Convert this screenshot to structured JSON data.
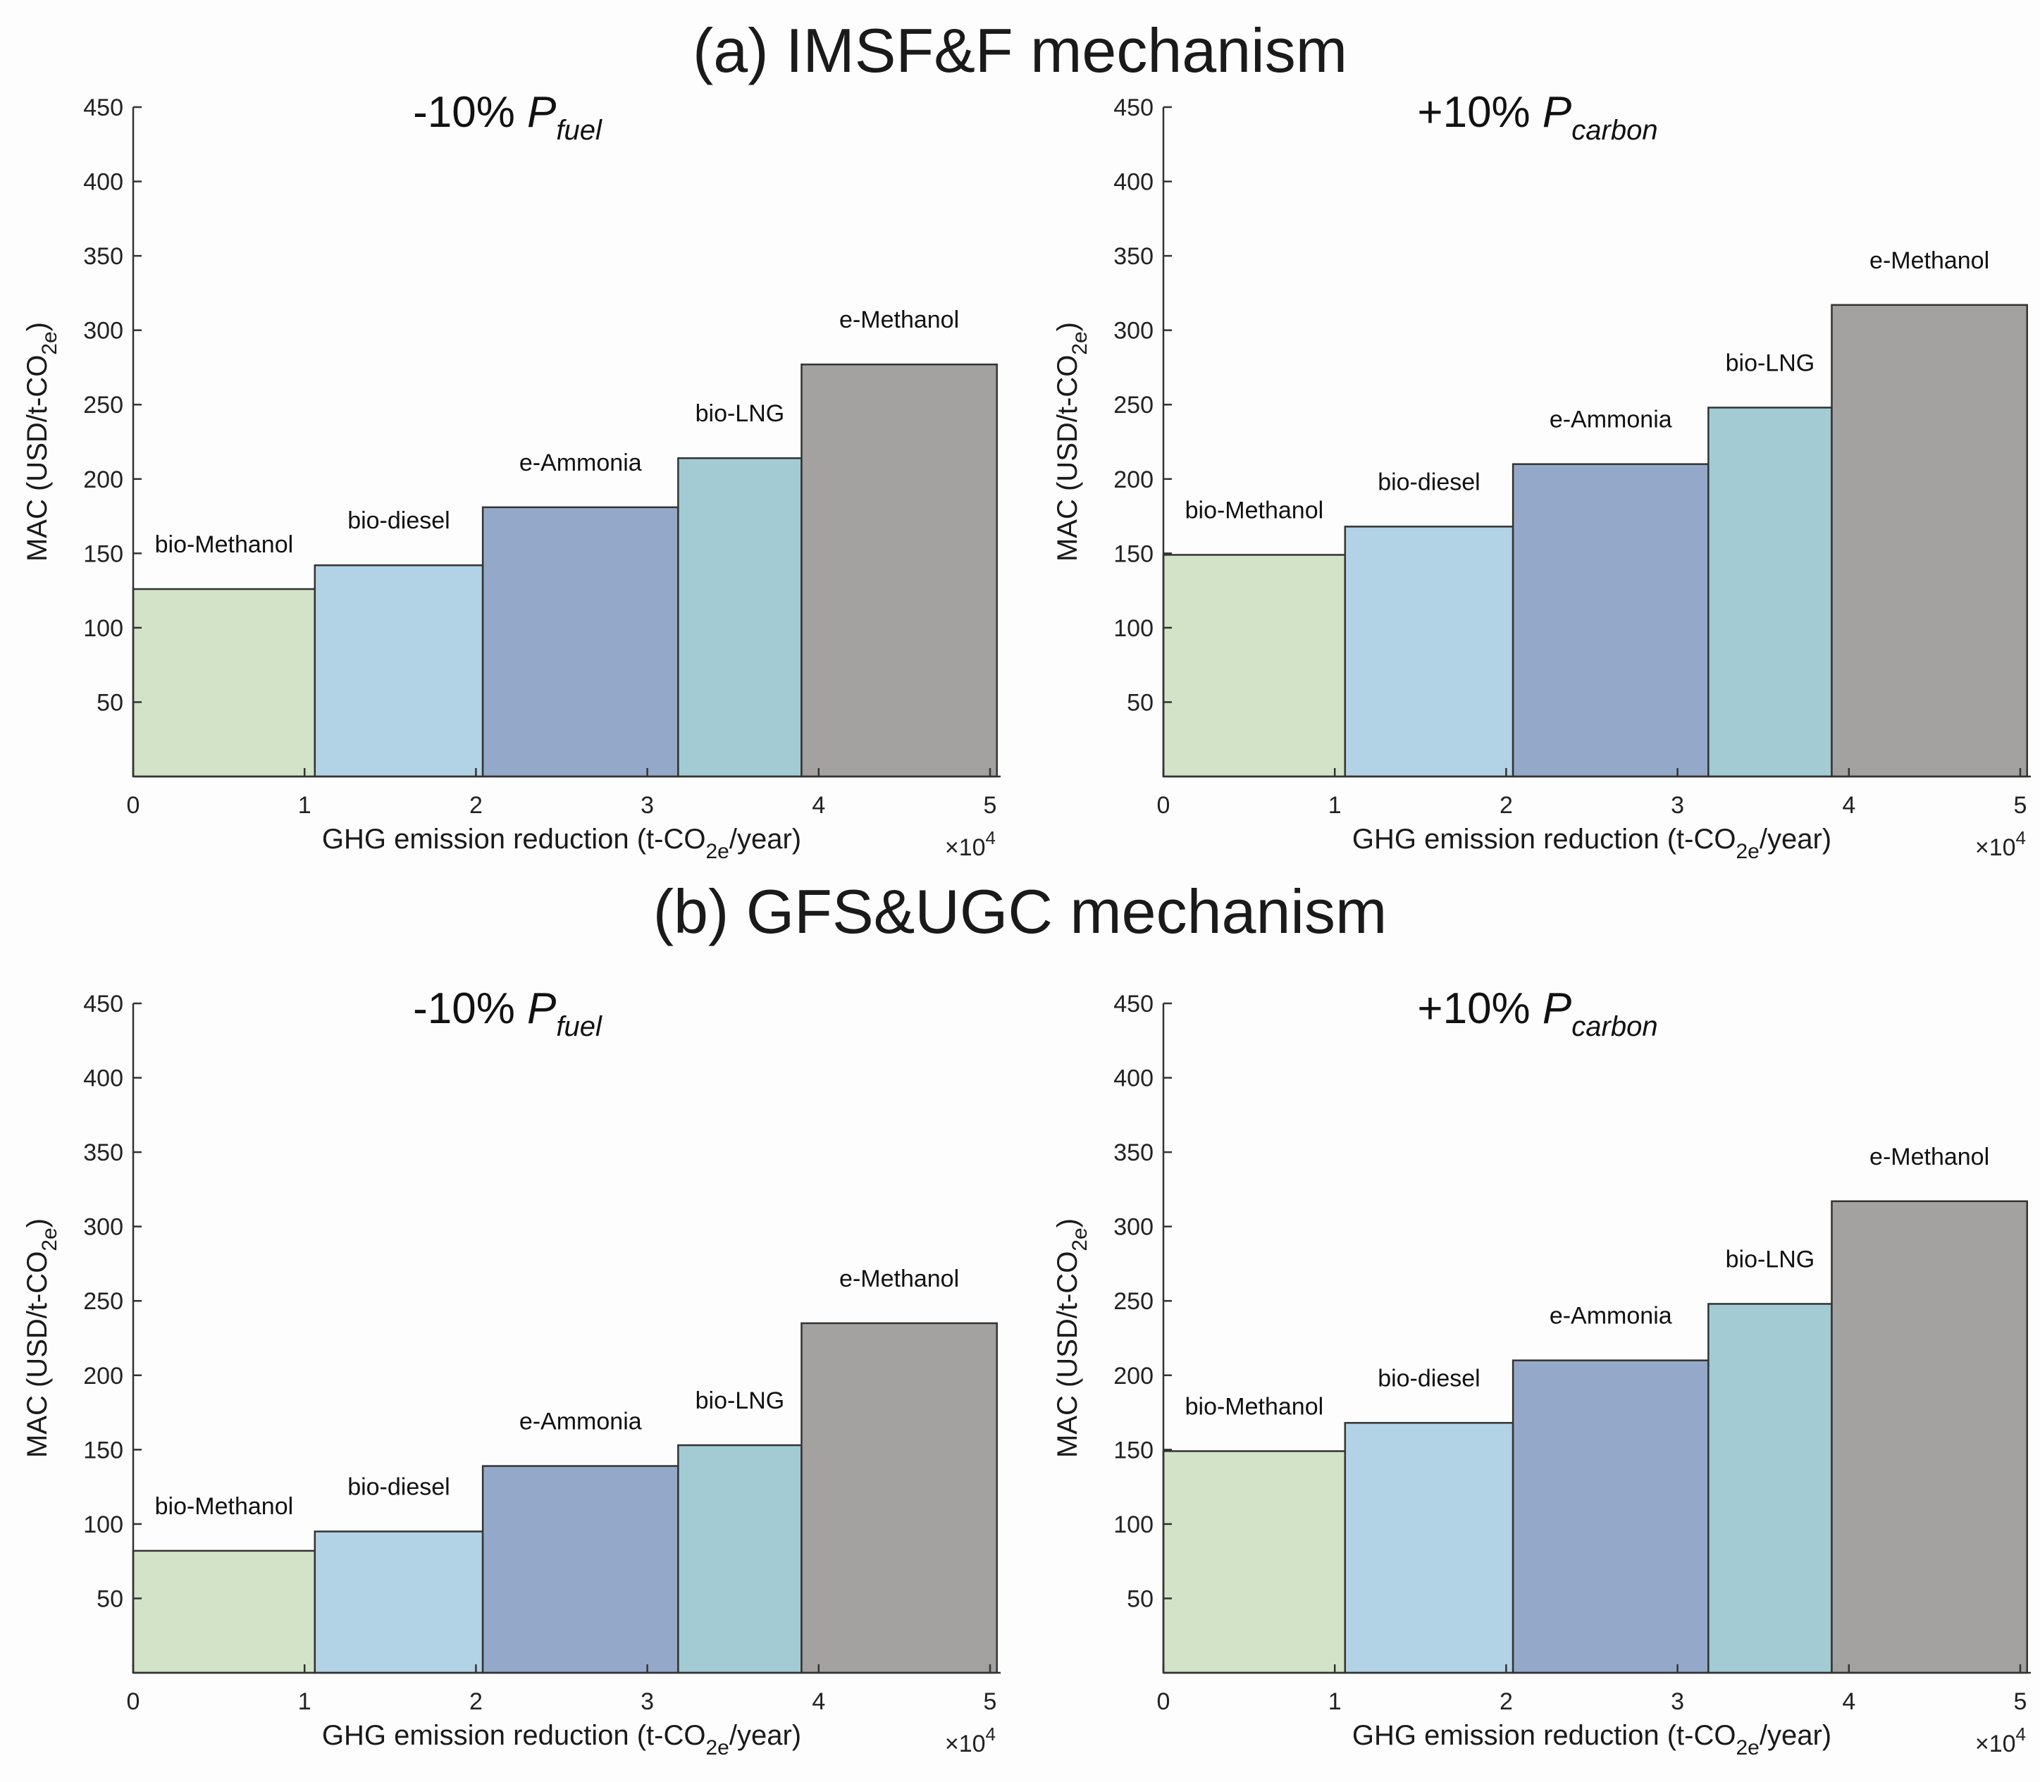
{
  "sections": {
    "a": {
      "title": "(a) IMSF&F mechanism"
    },
    "b": {
      "title": "(b) GFS&UGC mechanism"
    }
  },
  "panel_titles": {
    "fuel": {
      "main": "-10% ",
      "var": "P",
      "sub": "fuel"
    },
    "carbon": {
      "main": "+10% ",
      "var": "P",
      "sub": "carbon"
    }
  },
  "axis_labels": {
    "ylabel": {
      "main": "MAC (USD/t-CO",
      "sub": "2e",
      "end": ")"
    },
    "xlabel": {
      "main": "GHG emission reduction (t-CO",
      "sub": "2e",
      "end": "/year)"
    },
    "x_exponent": {
      "base": "×10",
      "power": "4"
    }
  },
  "colors": {
    "bio-Methanol": "#d2e3c7",
    "bio-diesel": "#b2d2e5",
    "e-Ammonia": "#94a9c9",
    "bio-LNG": "#a3cbd3",
    "e-Methanol": "#a4a2a0"
  },
  "chart_data": [
    {
      "id": "a-fuel",
      "section": "a",
      "type": "bar",
      "title": "-10% P_fuel",
      "xlabel": "GHG emission reduction (t-CO2e/year)",
      "ylabel": "MAC (USD/t-CO2e)",
      "xlim": [
        0,
        50000
      ],
      "ylim": [
        0,
        450
      ],
      "xticks": [
        "0",
        "1",
        "2",
        "3",
        "4",
        "5"
      ],
      "x_multiplier": "×10^4",
      "yticks": [
        "50",
        "100",
        "150",
        "200",
        "250",
        "300",
        "350",
        "400",
        "450"
      ],
      "bars": [
        {
          "label": "bio-Methanol",
          "x_start": 0,
          "x_end": 10600,
          "value": 126
        },
        {
          "label": "bio-diesel",
          "x_start": 10600,
          "x_end": 20400,
          "value": 142
        },
        {
          "label": "e-Ammonia",
          "x_start": 20400,
          "x_end": 31800,
          "value": 181
        },
        {
          "label": "bio-LNG",
          "x_start": 31800,
          "x_end": 39000,
          "value": 214
        },
        {
          "label": "e-Methanol",
          "x_start": 39000,
          "x_end": 50400,
          "value": 277
        }
      ]
    },
    {
      "id": "a-carbon",
      "section": "a",
      "type": "bar",
      "title": "+10% P_carbon",
      "xlabel": "GHG emission reduction (t-CO2e/year)",
      "ylabel": "MAC (USD/t-CO2e)",
      "xlim": [
        0,
        50000
      ],
      "ylim": [
        0,
        450
      ],
      "xticks": [
        "0",
        "1",
        "2",
        "3",
        "4",
        "5"
      ],
      "x_multiplier": "×10^4",
      "yticks": [
        "50",
        "100",
        "150",
        "200",
        "250",
        "300",
        "350",
        "400",
        "450"
      ],
      "bars": [
        {
          "label": "bio-Methanol",
          "x_start": 0,
          "x_end": 10600,
          "value": 149
        },
        {
          "label": "bio-diesel",
          "x_start": 10600,
          "x_end": 20400,
          "value": 168
        },
        {
          "label": "e-Ammonia",
          "x_start": 20400,
          "x_end": 31800,
          "value": 210
        },
        {
          "label": "bio-LNG",
          "x_start": 31800,
          "x_end": 39000,
          "value": 248
        },
        {
          "label": "e-Methanol",
          "x_start": 39000,
          "x_end": 50400,
          "value": 317
        }
      ]
    },
    {
      "id": "b-fuel",
      "section": "b",
      "type": "bar",
      "title": "-10% P_fuel",
      "xlabel": "GHG emission reduction (t-CO2e/year)",
      "ylabel": "MAC (USD/t-CO2e)",
      "xlim": [
        0,
        50000
      ],
      "ylim": [
        0,
        450
      ],
      "xticks": [
        "0",
        "1",
        "2",
        "3",
        "4",
        "5"
      ],
      "x_multiplier": "×10^4",
      "yticks": [
        "50",
        "100",
        "150",
        "200",
        "250",
        "300",
        "350",
        "400",
        "450"
      ],
      "bars": [
        {
          "label": "bio-Methanol",
          "x_start": 0,
          "x_end": 10600,
          "value": 82
        },
        {
          "label": "bio-diesel",
          "x_start": 10600,
          "x_end": 20400,
          "value": 95
        },
        {
          "label": "e-Ammonia",
          "x_start": 20400,
          "x_end": 31800,
          "value": 139
        },
        {
          "label": "bio-LNG",
          "x_start": 31800,
          "x_end": 39000,
          "value": 153
        },
        {
          "label": "e-Methanol",
          "x_start": 39000,
          "x_end": 50400,
          "value": 235
        }
      ]
    },
    {
      "id": "b-carbon",
      "section": "b",
      "type": "bar",
      "title": "+10% P_carbon",
      "xlabel": "GHG emission reduction (t-CO2e/year)",
      "ylabel": "MAC (USD/t-CO2e)",
      "xlim": [
        0,
        50000
      ],
      "ylim": [
        0,
        450
      ],
      "xticks": [
        "0",
        "1",
        "2",
        "3",
        "4",
        "5"
      ],
      "x_multiplier": "×10^4",
      "yticks": [
        "50",
        "100",
        "150",
        "200",
        "250",
        "300",
        "350",
        "400",
        "450"
      ],
      "bars": [
        {
          "label": "bio-Methanol",
          "x_start": 0,
          "x_end": 10600,
          "value": 149
        },
        {
          "label": "bio-diesel",
          "x_start": 10600,
          "x_end": 20400,
          "value": 168
        },
        {
          "label": "e-Ammonia",
          "x_start": 20400,
          "x_end": 31800,
          "value": 210
        },
        {
          "label": "bio-LNG",
          "x_start": 31800,
          "x_end": 39000,
          "value": 248
        },
        {
          "label": "e-Methanol",
          "x_start": 39000,
          "x_end": 50400,
          "value": 317
        }
      ]
    }
  ]
}
